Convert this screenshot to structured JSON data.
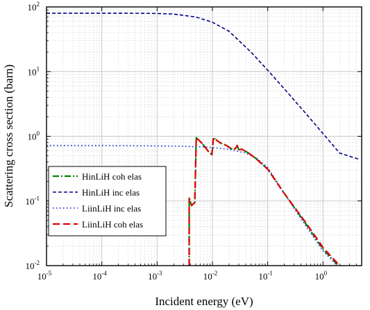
{
  "chart_data": {
    "type": "line",
    "xlabel": "Incident energy (eV)",
    "ylabel": "Scattering cross section (barn)",
    "xscale": "log",
    "yscale": "log",
    "xlim": [
      1e-05,
      5
    ],
    "ylim": [
      0.01,
      100
    ],
    "x_ticks": [
      {
        "base": "10",
        "exp": "-5"
      },
      {
        "base": "10",
        "exp": "-4"
      },
      {
        "base": "10",
        "exp": "-3"
      },
      {
        "base": "10",
        "exp": "-2"
      },
      {
        "base": "10",
        "exp": "-1"
      },
      {
        "base": "10",
        "exp": "0"
      }
    ],
    "y_ticks": [
      {
        "base": "10",
        "exp": "-2"
      },
      {
        "base": "10",
        "exp": "-1"
      },
      {
        "base": "10",
        "exp": "0"
      },
      {
        "base": "10",
        "exp": "1"
      },
      {
        "base": "10",
        "exp": "2"
      }
    ],
    "grid": true,
    "legend_position": "lower-left",
    "series": [
      {
        "name": "HinLiH coh elas",
        "color": "#008000",
        "dash": "dash-dot",
        "x": [
          0.0038,
          0.0038,
          0.0042,
          0.0048,
          0.0051,
          0.0051,
          0.0065,
          0.0085,
          0.0098,
          0.0104,
          0.0104,
          0.0135,
          0.018,
          0.022,
          0.026,
          0.028,
          0.03,
          0.034,
          0.045,
          0.06,
          0.1,
          0.2,
          0.5,
          1.0,
          2.0
        ],
        "y": [
          0.01,
          0.11,
          0.085,
          0.095,
          0.95,
          0.95,
          0.78,
          0.58,
          0.52,
          0.95,
          0.95,
          0.8,
          0.72,
          0.64,
          0.64,
          0.72,
          0.62,
          0.63,
          0.55,
          0.46,
          0.31,
          0.13,
          0.043,
          0.018,
          0.0095
        ]
      },
      {
        "name": "HinLiH inc elas",
        "color": "#00008B",
        "dash": "dash",
        "x": [
          1e-05,
          0.0001,
          0.0005,
          0.001,
          0.002,
          0.005,
          0.01,
          0.02,
          0.05,
          0.1,
          0.2,
          0.5,
          1.0,
          2.0,
          4.5
        ],
        "y": [
          80,
          80,
          79.8,
          79.2,
          77.5,
          70,
          58,
          42,
          20,
          10.5,
          5.4,
          2.2,
          1.1,
          0.55,
          0.44
        ]
      },
      {
        "name": "LiinLiH inc elas",
        "color": "#1F2FE0",
        "dash": "dot",
        "x": [
          1e-05,
          0.0001,
          0.001,
          0.003,
          0.005,
          0.01,
          0.02,
          0.04,
          0.06,
          0.1,
          0.2,
          0.5,
          1.0,
          2.0
        ],
        "y": [
          0.72,
          0.72,
          0.71,
          0.7,
          0.69,
          0.67,
          0.63,
          0.55,
          0.47,
          0.33,
          0.13,
          0.04,
          0.017,
          0.009
        ]
      },
      {
        "name": "LiinLiH coh elas",
        "color": "#E00000",
        "dash": "longdash",
        "x": [
          0.0038,
          0.0038,
          0.0042,
          0.0048,
          0.0051,
          0.0051,
          0.0065,
          0.0085,
          0.0098,
          0.0104,
          0.0104,
          0.0135,
          0.018,
          0.022,
          0.026,
          0.028,
          0.03,
          0.034,
          0.045,
          0.06,
          0.1,
          0.2,
          0.5,
          1.0,
          2.0,
          2.6
        ],
        "y": [
          0.01,
          0.11,
          0.085,
          0.095,
          0.95,
          0.95,
          0.78,
          0.58,
          0.52,
          0.95,
          0.95,
          0.8,
          0.72,
          0.64,
          0.64,
          0.72,
          0.62,
          0.63,
          0.55,
          0.46,
          0.31,
          0.13,
          0.045,
          0.019,
          0.01,
          0.0095
        ]
      }
    ]
  }
}
